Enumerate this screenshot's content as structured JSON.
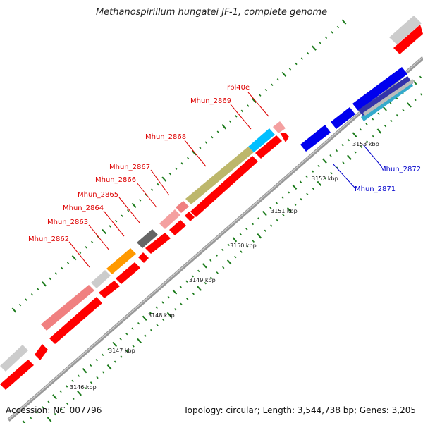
{
  "title": "Methanospirillum hungatei JF-1, complete genome",
  "footer": {
    "accession": "Accession: NC_007796",
    "topology": "Topology: circular; Length: 3,544,738 bp; Genes: 3,205"
  },
  "colors": {
    "forward_gene": "#ff0000",
    "reverse_gene": "#0000ee",
    "backbone": "#888888",
    "tick": "#1a7a1a",
    "label_forward": "#dd0000",
    "label_reverse": "#0000cc"
  },
  "kbp_labels": [
    "3146 kbp",
    "3147 kbp",
    "3148 kbp",
    "3149 kbp",
    "3150 kbp",
    "3151 kbp",
    "3152 kbp",
    "3153 kbp"
  ],
  "gene_labels_forward": [
    "rpl40e",
    "Mhun_2869",
    "Mhun_2868",
    "Mhun_2867",
    "Mhun_2866",
    "Mhun_2865",
    "Mhun_2864",
    "Mhun_2863",
    "Mhun_2862"
  ],
  "gene_labels_reverse": [
    "Mhun_2872",
    "Mhun_2871"
  ]
}
